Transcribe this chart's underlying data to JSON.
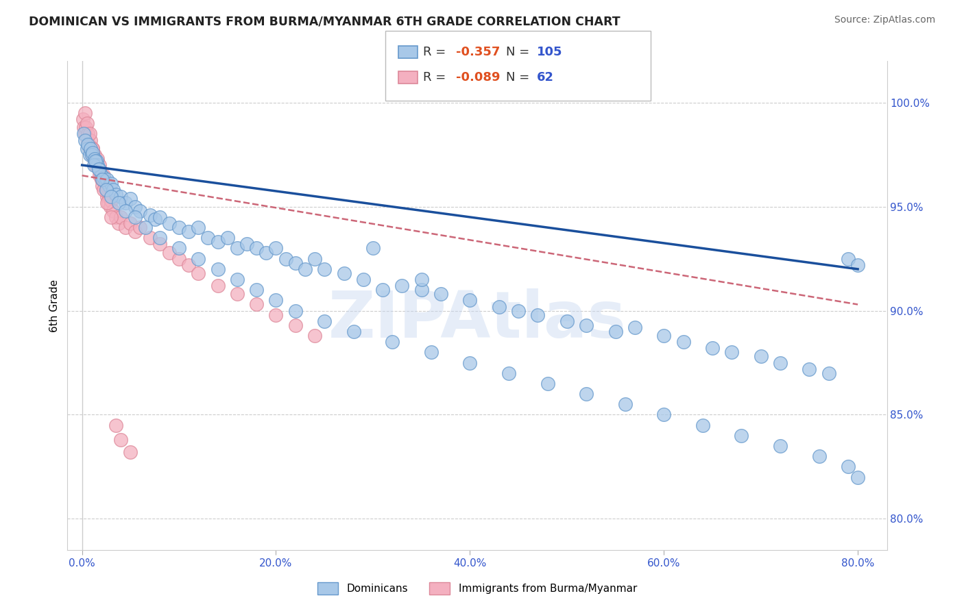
{
  "title": "DOMINICAN VS IMMIGRANTS FROM BURMA/MYANMAR 6TH GRADE CORRELATION CHART",
  "source": "Source: ZipAtlas.com",
  "ylabel": "6th Grade",
  "x_tick_labels": [
    "0.0%",
    "20.0%",
    "40.0%",
    "60.0%",
    "80.0%"
  ],
  "x_tick_values": [
    0.0,
    20.0,
    40.0,
    60.0,
    80.0
  ],
  "y_right_labels": [
    "100.0%",
    "95.0%",
    "90.0%",
    "85.0%",
    "80.0%"
  ],
  "y_right_values": [
    100.0,
    95.0,
    90.0,
    85.0,
    80.0
  ],
  "xlim": [
    -1.5,
    83
  ],
  "ylim": [
    78.5,
    102
  ],
  "blue_color": "#a8c8e8",
  "blue_edge_color": "#6699cc",
  "blue_line_color": "#1a4f9c",
  "pink_color": "#f4b0c0",
  "pink_edge_color": "#dd8899",
  "pink_line_color": "#cc6677",
  "legend_blue_label": "Dominicans",
  "legend_pink_label": "Immigrants from Burma/Myanmar",
  "watermark": "ZIPAtlas",
  "blue_R": -0.357,
  "blue_N": 105,
  "pink_R": -0.089,
  "pink_N": 62,
  "blue_x": [
    0.2,
    0.3,
    0.5,
    0.6,
    0.8,
    0.9,
    1.0,
    1.1,
    1.3,
    1.5,
    1.6,
    1.8,
    2.0,
    2.2,
    2.4,
    2.6,
    2.8,
    3.0,
    3.2,
    3.5,
    4.0,
    4.5,
    5.0,
    5.5,
    6.0,
    7.0,
    7.5,
    8.0,
    9.0,
    10.0,
    11.0,
    12.0,
    13.0,
    14.0,
    15.0,
    16.0,
    17.0,
    18.0,
    19.0,
    20.0,
    21.0,
    22.0,
    23.0,
    24.0,
    25.0,
    27.0,
    29.0,
    31.0,
    33.0,
    35.0,
    37.0,
    40.0,
    43.0,
    45.0,
    47.0,
    50.0,
    52.0,
    55.0,
    57.0,
    60.0,
    62.0,
    65.0,
    67.0,
    70.0,
    72.0,
    75.0,
    77.0,
    79.0,
    80.0,
    1.2,
    1.4,
    1.7,
    2.1,
    2.5,
    3.0,
    3.8,
    4.5,
    5.5,
    6.5,
    8.0,
    10.0,
    12.0,
    14.0,
    16.0,
    18.0,
    20.0,
    22.0,
    25.0,
    28.0,
    32.0,
    36.0,
    40.0,
    44.0,
    48.0,
    52.0,
    56.0,
    60.0,
    64.0,
    68.0,
    72.0,
    76.0,
    79.0,
    80.0,
    30.0,
    35.0
  ],
  "blue_y": [
    98.5,
    98.2,
    97.8,
    98.0,
    97.5,
    97.8,
    97.5,
    97.6,
    97.3,
    97.2,
    97.0,
    96.8,
    96.5,
    96.4,
    96.2,
    96.3,
    96.0,
    96.1,
    95.8,
    95.6,
    95.5,
    95.2,
    95.4,
    95.0,
    94.8,
    94.6,
    94.4,
    94.5,
    94.2,
    94.0,
    93.8,
    94.0,
    93.5,
    93.3,
    93.5,
    93.0,
    93.2,
    93.0,
    92.8,
    93.0,
    92.5,
    92.3,
    92.0,
    92.5,
    92.0,
    91.8,
    91.5,
    91.0,
    91.2,
    91.0,
    90.8,
    90.5,
    90.2,
    90.0,
    89.8,
    89.5,
    89.3,
    89.0,
    89.2,
    88.8,
    88.5,
    88.2,
    88.0,
    87.8,
    87.5,
    87.2,
    87.0,
    92.5,
    92.2,
    97.0,
    97.2,
    96.8,
    96.3,
    95.8,
    95.5,
    95.2,
    94.8,
    94.5,
    94.0,
    93.5,
    93.0,
    92.5,
    92.0,
    91.5,
    91.0,
    90.5,
    90.0,
    89.5,
    89.0,
    88.5,
    88.0,
    87.5,
    87.0,
    86.5,
    86.0,
    85.5,
    85.0,
    84.5,
    84.0,
    83.5,
    83.0,
    82.5,
    82.0,
    93.0,
    91.5
  ],
  "pink_x": [
    0.1,
    0.2,
    0.3,
    0.4,
    0.5,
    0.6,
    0.7,
    0.8,
    0.9,
    1.0,
    1.1,
    1.2,
    1.3,
    1.4,
    1.5,
    1.6,
    1.7,
    1.8,
    1.9,
    2.0,
    2.1,
    2.2,
    2.3,
    2.4,
    2.5,
    2.6,
    2.7,
    2.8,
    2.9,
    3.0,
    3.2,
    3.5,
    3.8,
    4.0,
    4.5,
    5.0,
    5.5,
    6.0,
    7.0,
    8.0,
    9.0,
    10.0,
    11.0,
    12.0,
    14.0,
    16.0,
    18.0,
    20.0,
    22.0,
    24.0,
    0.3,
    0.5,
    0.8,
    1.1,
    1.4,
    1.8,
    2.2,
    2.6,
    3.0,
    3.5,
    4.0,
    5.0
  ],
  "pink_y": [
    99.2,
    98.8,
    98.5,
    98.8,
    98.3,
    98.5,
    98.0,
    97.8,
    98.2,
    97.5,
    97.8,
    97.3,
    97.5,
    97.2,
    97.0,
    97.3,
    96.8,
    97.0,
    96.5,
    96.3,
    96.0,
    96.5,
    96.2,
    95.8,
    96.0,
    95.5,
    95.2,
    95.5,
    95.0,
    95.3,
    94.8,
    94.5,
    94.2,
    94.5,
    94.0,
    94.2,
    93.8,
    94.0,
    93.5,
    93.2,
    92.8,
    92.5,
    92.2,
    91.8,
    91.2,
    90.8,
    90.3,
    89.8,
    89.3,
    88.8,
    99.5,
    99.0,
    98.5,
    97.8,
    97.0,
    96.5,
    95.8,
    95.2,
    94.5,
    84.5,
    83.8,
    83.2
  ]
}
